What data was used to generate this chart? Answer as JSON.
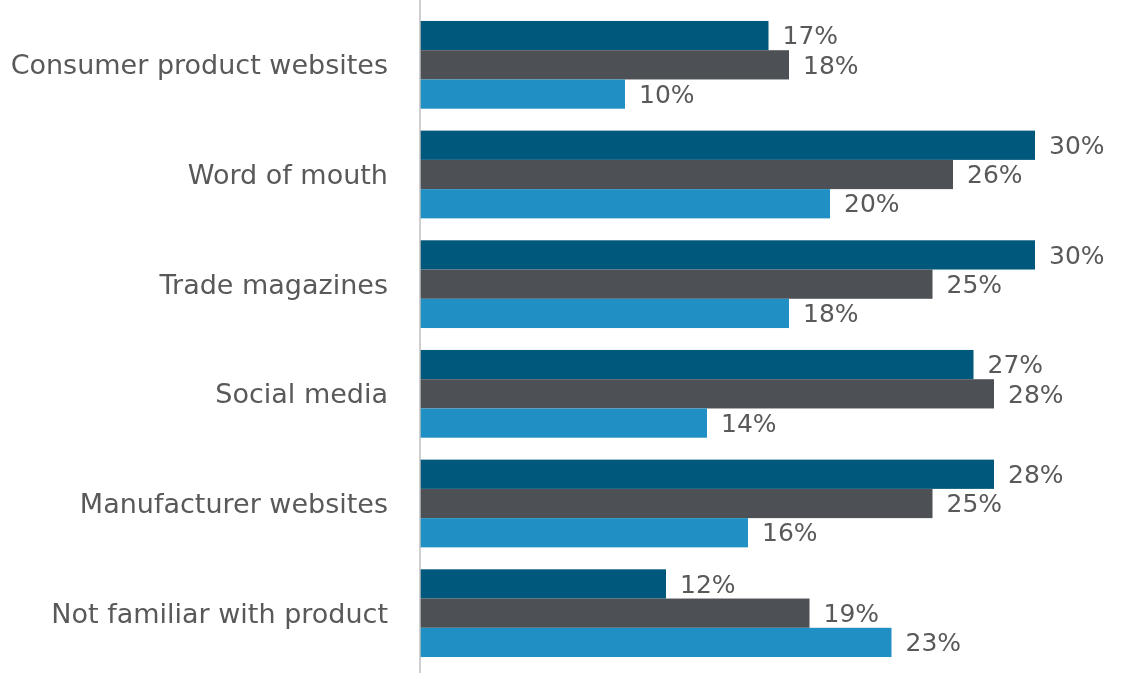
{
  "chart_data": {
    "type": "bar",
    "orientation": "horizontal",
    "categories": [
      "Consumer product websites",
      "Word of mouth",
      "Trade magazines",
      "Social media",
      "Manufacturer websites",
      "Not familiar with product"
    ],
    "series": [
      {
        "color": "#00587c",
        "values": [
          17,
          30,
          30,
          27,
          28,
          12
        ],
        "value_labels": [
          "17%",
          "30%",
          "30%",
          "27%",
          "28%",
          "12%"
        ]
      },
      {
        "color": "#4d5054",
        "values": [
          18,
          26,
          25,
          28,
          25,
          19
        ],
        "value_labels": [
          "18%",
          "26%",
          "25%",
          "28%",
          "25%",
          "19%"
        ]
      },
      {
        "color": "#1f8fc4",
        "values": [
          10,
          20,
          18,
          14,
          16,
          23
        ],
        "value_labels": [
          "10%",
          "20%",
          "18%",
          "14%",
          "16%",
          "23%"
        ]
      }
    ]
  }
}
